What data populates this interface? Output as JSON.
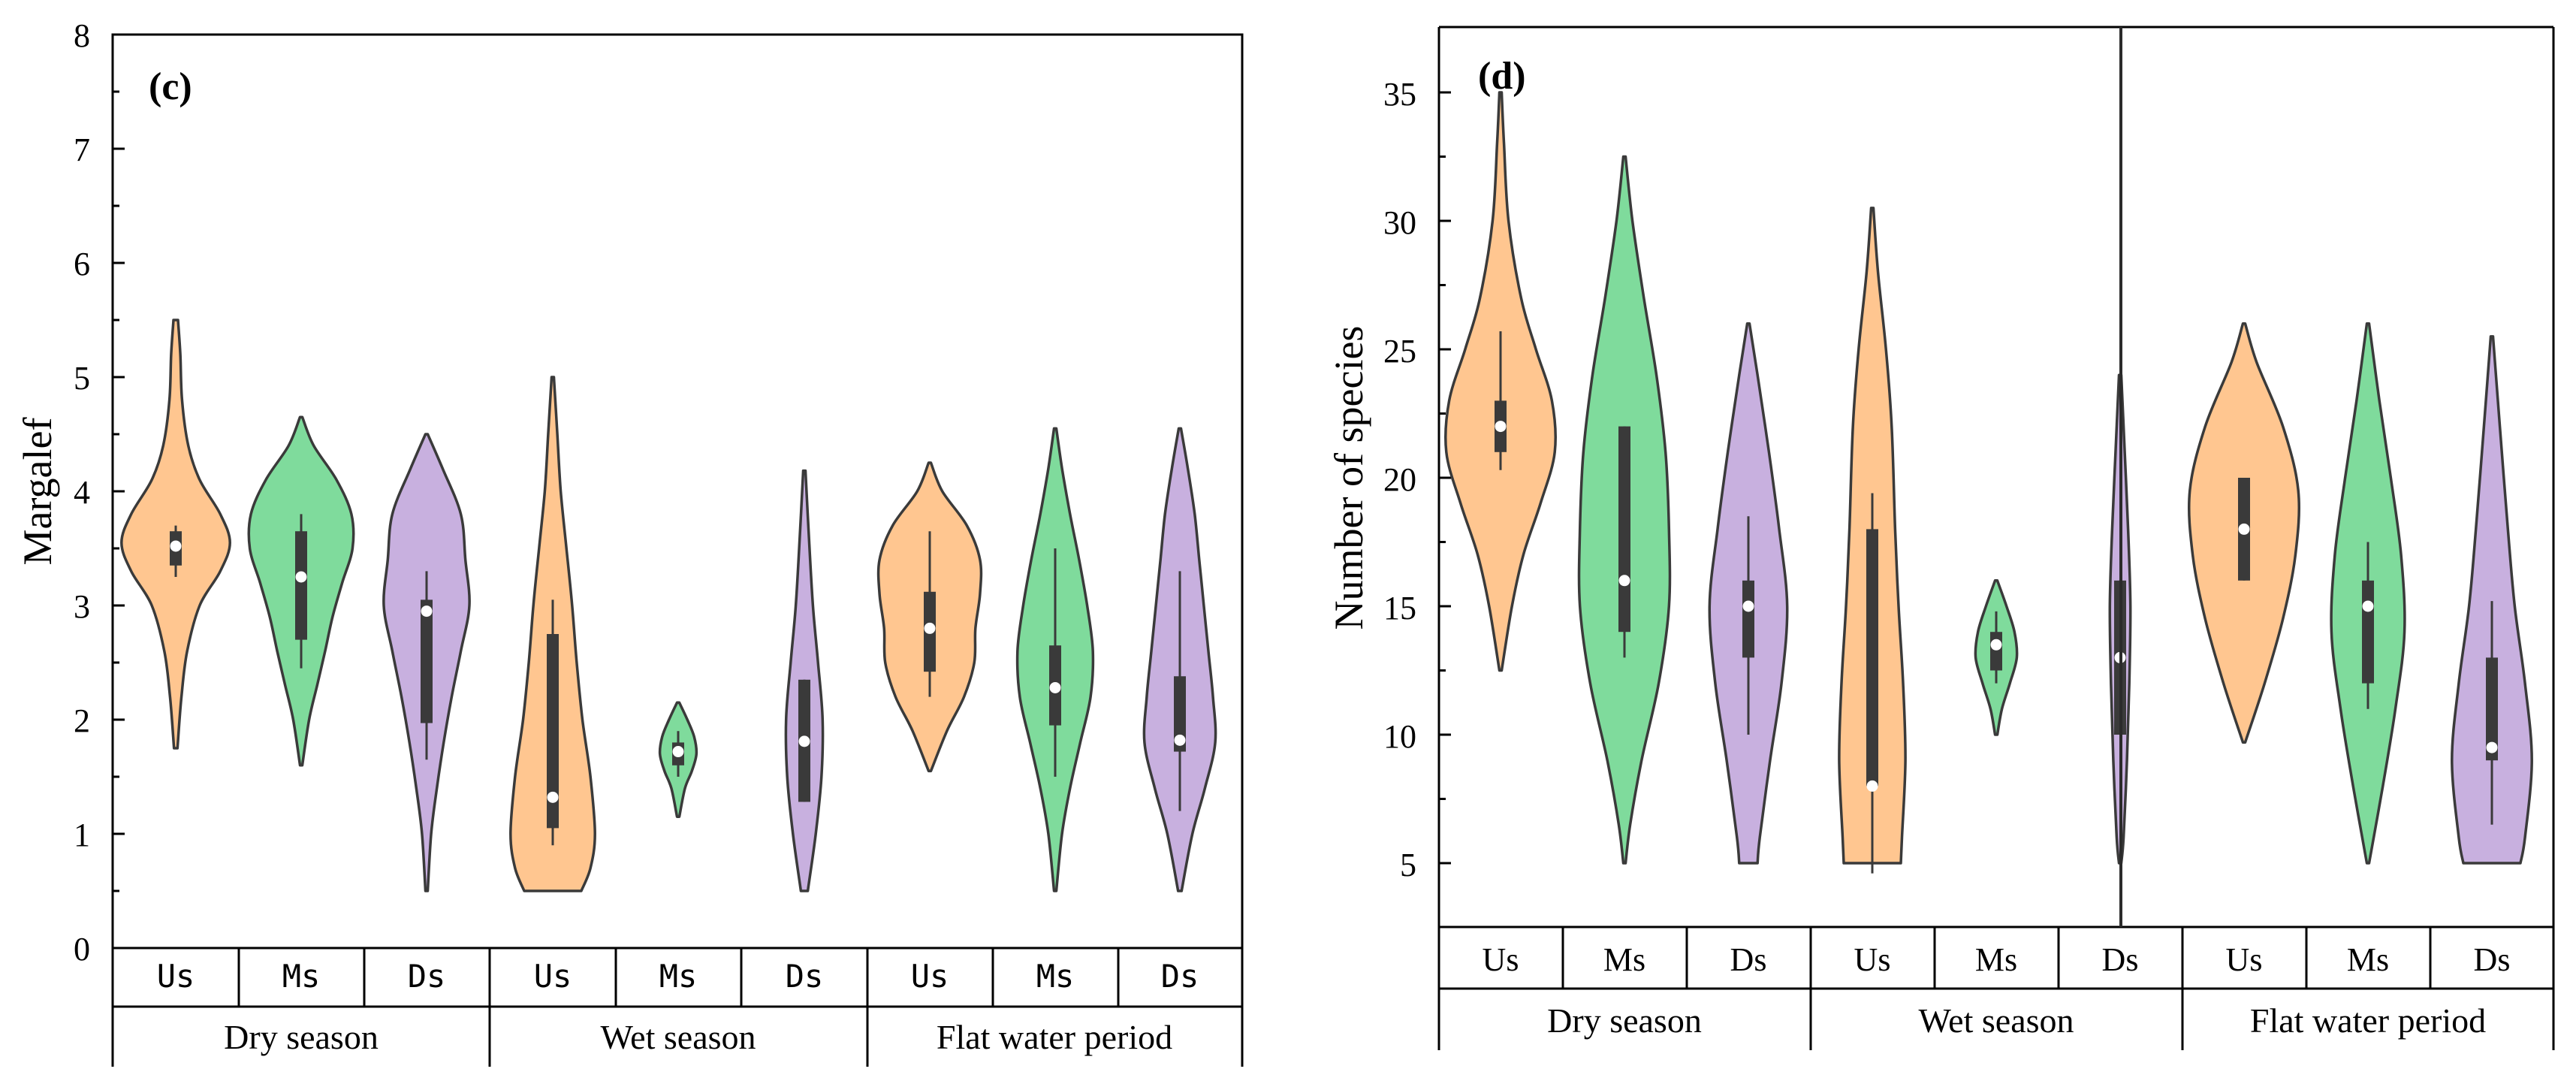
{
  "colors": {
    "Us": "#FFC690",
    "Ms": "#7FDB9C",
    "Ds": "#C8B0DF",
    "outline": "#3a3a3a",
    "box": "#3a3a3a",
    "median": "#ffffff"
  },
  "chart_data": [
    {
      "type": "violin",
      "panel_label": "(c)",
      "title": "",
      "ylabel": "Margalef",
      "xlabel": "",
      "ylim": [
        0,
        8
      ],
      "ytick_labels": [
        "0",
        "1",
        "2",
        "3",
        "4",
        "5",
        "6",
        "7",
        "8"
      ],
      "groups": [
        {
          "label": "Dry season",
          "categories": [
            "Us",
            "Ms",
            "Ds"
          ]
        },
        {
          "label": "Wet season",
          "categories": [
            "Us",
            "Ms",
            "Ds"
          ]
        },
        {
          "label": "Flat water period",
          "categories": [
            "Us",
            "Ms",
            "Ds"
          ]
        }
      ],
      "series": [
        {
          "group": "Dry season",
          "site": "Us",
          "min": 1.75,
          "max": 5.5,
          "q1": 3.35,
          "median": 3.52,
          "q3": 3.65,
          "wlo": 3.25,
          "whi": 3.7,
          "shape": [
            [
              5.5,
              0.04
            ],
            [
              5.2,
              0.08
            ],
            [
              4.8,
              0.11
            ],
            [
              4.4,
              0.22
            ],
            [
              4.1,
              0.42
            ],
            [
              3.8,
              0.78
            ],
            [
              3.55,
              0.95
            ],
            [
              3.3,
              0.78
            ],
            [
              3.0,
              0.42
            ],
            [
              2.6,
              0.2
            ],
            [
              2.2,
              0.1
            ],
            [
              1.75,
              0.03
            ]
          ]
        },
        {
          "group": "Dry season",
          "site": "Ms",
          "min": 1.6,
          "max": 4.65,
          "q1": 2.7,
          "median": 3.25,
          "q3": 3.65,
          "wlo": 2.45,
          "whi": 3.8,
          "shape": [
            [
              4.65,
              0.02
            ],
            [
              4.4,
              0.22
            ],
            [
              4.1,
              0.62
            ],
            [
              3.8,
              0.88
            ],
            [
              3.5,
              0.9
            ],
            [
              3.2,
              0.72
            ],
            [
              2.9,
              0.55
            ],
            [
              2.6,
              0.42
            ],
            [
              2.3,
              0.28
            ],
            [
              2.0,
              0.14
            ],
            [
              1.6,
              0.02
            ]
          ]
        },
        {
          "group": "Dry season",
          "site": "Ds",
          "min": 0.5,
          "max": 4.5,
          "q1": 1.97,
          "median": 2.95,
          "q3": 3.05,
          "wlo": 1.65,
          "whi": 3.3,
          "shape": [
            [
              4.5,
              0.02
            ],
            [
              4.2,
              0.28
            ],
            [
              3.8,
              0.6
            ],
            [
              3.4,
              0.68
            ],
            [
              3.0,
              0.75
            ],
            [
              2.6,
              0.6
            ],
            [
              2.2,
              0.44
            ],
            [
              1.8,
              0.3
            ],
            [
              1.4,
              0.18
            ],
            [
              1.0,
              0.08
            ],
            [
              0.5,
              0.02
            ]
          ]
        },
        {
          "group": "Wet season",
          "site": "Us",
          "min": 0.5,
          "max": 5.0,
          "q1": 1.05,
          "median": 1.32,
          "q3": 2.75,
          "wlo": 0.9,
          "whi": 3.05,
          "shape": [
            [
              5.0,
              0.02
            ],
            [
              4.5,
              0.08
            ],
            [
              4.0,
              0.14
            ],
            [
              3.5,
              0.24
            ],
            [
              3.0,
              0.34
            ],
            [
              2.5,
              0.42
            ],
            [
              2.0,
              0.52
            ],
            [
              1.5,
              0.66
            ],
            [
              1.0,
              0.74
            ],
            [
              0.7,
              0.66
            ],
            [
              0.5,
              0.5
            ]
          ]
        },
        {
          "group": "Wet season",
          "site": "Ms",
          "min": 1.15,
          "max": 2.15,
          "q1": 1.6,
          "median": 1.72,
          "q3": 1.8,
          "wlo": 1.5,
          "whi": 1.9,
          "shape": [
            [
              2.15,
              0.02
            ],
            [
              2.0,
              0.16
            ],
            [
              1.85,
              0.28
            ],
            [
              1.7,
              0.32
            ],
            [
              1.55,
              0.24
            ],
            [
              1.4,
              0.12
            ],
            [
              1.15,
              0.02
            ]
          ]
        },
        {
          "group": "Wet season",
          "site": "Ds",
          "min": 0.5,
          "max": 4.18,
          "q1": 1.28,
          "median": 1.81,
          "q3": 2.35,
          "wlo": 1.28,
          "whi": 2.35,
          "shape": [
            [
              4.18,
              0.02
            ],
            [
              3.6,
              0.08
            ],
            [
              3.0,
              0.15
            ],
            [
              2.5,
              0.24
            ],
            [
              2.0,
              0.32
            ],
            [
              1.5,
              0.3
            ],
            [
              1.0,
              0.2
            ],
            [
              0.5,
              0.06
            ]
          ]
        },
        {
          "group": "Flat water period",
          "site": "Us",
          "min": 1.55,
          "max": 4.25,
          "q1": 2.42,
          "median": 2.8,
          "q3": 3.12,
          "wlo": 2.2,
          "whi": 3.65,
          "shape": [
            [
              4.25,
              0.02
            ],
            [
              4.0,
              0.22
            ],
            [
              3.7,
              0.65
            ],
            [
              3.4,
              0.88
            ],
            [
              3.1,
              0.88
            ],
            [
              2.8,
              0.8
            ],
            [
              2.5,
              0.78
            ],
            [
              2.2,
              0.6
            ],
            [
              1.9,
              0.3
            ],
            [
              1.55,
              0.02
            ]
          ]
        },
        {
          "group": "Flat water period",
          "site": "Ms",
          "min": 0.5,
          "max": 4.55,
          "q1": 1.95,
          "median": 2.28,
          "q3": 2.65,
          "wlo": 1.5,
          "whi": 3.5,
          "shape": [
            [
              4.55,
              0.02
            ],
            [
              4.2,
              0.12
            ],
            [
              3.8,
              0.26
            ],
            [
              3.4,
              0.42
            ],
            [
              3.0,
              0.56
            ],
            [
              2.6,
              0.66
            ],
            [
              2.2,
              0.62
            ],
            [
              1.8,
              0.44
            ],
            [
              1.4,
              0.26
            ],
            [
              1.0,
              0.12
            ],
            [
              0.5,
              0.02
            ]
          ]
        },
        {
          "group": "Flat water period",
          "site": "Ds",
          "min": 0.5,
          "max": 4.55,
          "q1": 1.72,
          "median": 1.82,
          "q3": 2.38,
          "wlo": 1.2,
          "whi": 3.3,
          "shape": [
            [
              4.55,
              0.02
            ],
            [
              4.2,
              0.14
            ],
            [
              3.8,
              0.26
            ],
            [
              3.4,
              0.34
            ],
            [
              3.0,
              0.42
            ],
            [
              2.6,
              0.5
            ],
            [
              2.2,
              0.58
            ],
            [
              1.8,
              0.62
            ],
            [
              1.4,
              0.44
            ],
            [
              1.0,
              0.22
            ],
            [
              0.5,
              0.03
            ]
          ]
        }
      ]
    },
    {
      "type": "violin",
      "panel_label": "(d)",
      "title": "",
      "ylabel": "Number of  species",
      "xlabel": "",
      "ylim": [
        2.5,
        37.5
      ],
      "ytick_labels": [
        "5",
        "10",
        "15",
        "20",
        "25",
        "30",
        "35"
      ],
      "groups": [
        {
          "label": "Dry season",
          "categories": [
            "Us",
            "Ms",
            "Ds"
          ]
        },
        {
          "label": "Wet season",
          "categories": [
            "Us",
            "Ms",
            "Ds"
          ]
        },
        {
          "label": "Flat water period",
          "categories": [
            "Us",
            "Ms",
            "Ds"
          ]
        }
      ],
      "series": [
        {
          "group": "Dry season",
          "site": "Us",
          "min": 12.5,
          "max": 35,
          "q1": 21,
          "median": 22,
          "q3": 23,
          "wlo": 20.3,
          "whi": 25.7,
          "shape": [
            [
              35,
              0.02
            ],
            [
              33,
              0.06
            ],
            [
              30,
              0.14
            ],
            [
              27,
              0.36
            ],
            [
              25,
              0.62
            ],
            [
              23,
              0.9
            ],
            [
              21,
              0.95
            ],
            [
              19,
              0.7
            ],
            [
              17,
              0.4
            ],
            [
              15,
              0.2
            ],
            [
              12.5,
              0.02
            ]
          ]
        },
        {
          "group": "Dry season",
          "site": "Ms",
          "min": 5,
          "max": 32.5,
          "q1": 14,
          "median": 16,
          "q3": 22,
          "wlo": 13,
          "whi": 22,
          "shape": [
            [
              32.5,
              0.02
            ],
            [
              30,
              0.14
            ],
            [
              27,
              0.34
            ],
            [
              24,
              0.56
            ],
            [
              21,
              0.72
            ],
            [
              18,
              0.78
            ],
            [
              15,
              0.78
            ],
            [
              12,
              0.6
            ],
            [
              9,
              0.3
            ],
            [
              6.5,
              0.1
            ],
            [
              5,
              0.02
            ]
          ]
        },
        {
          "group": "Dry season",
          "site": "Ds",
          "min": 5,
          "max": 26,
          "q1": 13,
          "median": 15,
          "q3": 16,
          "wlo": 10,
          "whi": 18.5,
          "shape": [
            [
              26,
              0.02
            ],
            [
              24,
              0.16
            ],
            [
              21,
              0.36
            ],
            [
              18,
              0.54
            ],
            [
              15,
              0.68
            ],
            [
              12,
              0.58
            ],
            [
              9,
              0.38
            ],
            [
              6,
              0.2
            ],
            [
              5,
              0.16
            ]
          ]
        },
        {
          "group": "Wet season",
          "site": "Us",
          "min": 5,
          "max": 30.5,
          "q1": 8,
          "median": 8,
          "q3": 18,
          "wlo": 4.6,
          "whi": 19.4,
          "shape": [
            [
              30.5,
              0.02
            ],
            [
              28,
              0.1
            ],
            [
              25,
              0.24
            ],
            [
              22,
              0.34
            ],
            [
              18,
              0.4
            ],
            [
              15,
              0.46
            ],
            [
              12,
              0.54
            ],
            [
              9,
              0.58
            ],
            [
              6,
              0.52
            ],
            [
              5,
              0.5
            ]
          ]
        },
        {
          "group": "Wet season",
          "site": "Ms",
          "min": 10,
          "max": 16,
          "q1": 12.5,
          "median": 13.5,
          "q3": 14,
          "wlo": 12,
          "whi": 14.8,
          "shape": [
            [
              16,
              0.02
            ],
            [
              15,
              0.18
            ],
            [
              14,
              0.32
            ],
            [
              13,
              0.36
            ],
            [
              12,
              0.24
            ],
            [
              11,
              0.1
            ],
            [
              10,
              0.02
            ]
          ]
        },
        {
          "group": "Wet season",
          "site": "Ds",
          "min": 5,
          "max": 24,
          "q1": 10,
          "median": 13,
          "q3": 16,
          "wlo": 10,
          "whi": 16,
          "shape": [
            [
              24,
              0.02
            ],
            [
              21,
              0.08
            ],
            [
              18,
              0.14
            ],
            [
              15,
              0.18
            ],
            [
              12,
              0.16
            ],
            [
              9,
              0.12
            ],
            [
              6,
              0.06
            ],
            [
              5,
              0.02
            ]
          ]
        },
        {
          "group": "Flat water period",
          "site": "Us",
          "min": 9.7,
          "max": 26,
          "q1": 16,
          "median": 18,
          "q3": 20,
          "wlo": 16,
          "whi": 20,
          "shape": [
            [
              26,
              0.02
            ],
            [
              24.5,
              0.22
            ],
            [
              22,
              0.68
            ],
            [
              19.5,
              0.95
            ],
            [
              17,
              0.9
            ],
            [
              14.5,
              0.68
            ],
            [
              12,
              0.36
            ],
            [
              9.7,
              0.02
            ]
          ]
        },
        {
          "group": "Flat water period",
          "site": "Ms",
          "min": 5,
          "max": 26,
          "q1": 12,
          "median": 15,
          "q3": 16,
          "wlo": 11,
          "whi": 17.5,
          "shape": [
            [
              26,
              0.02
            ],
            [
              23,
              0.2
            ],
            [
              20,
              0.4
            ],
            [
              17,
              0.58
            ],
            [
              14,
              0.64
            ],
            [
              11,
              0.48
            ],
            [
              8,
              0.26
            ],
            [
              5,
              0.02
            ]
          ]
        },
        {
          "group": "Flat water period",
          "site": "Ds",
          "min": 5,
          "max": 25.5,
          "q1": 9,
          "median": 9.5,
          "q3": 13,
          "wlo": 6.5,
          "whi": 15.2,
          "shape": [
            [
              25.5,
              0.02
            ],
            [
              22,
              0.14
            ],
            [
              18,
              0.28
            ],
            [
              15,
              0.4
            ],
            [
              12,
              0.58
            ],
            [
              9,
              0.7
            ],
            [
              6,
              0.58
            ],
            [
              5,
              0.5
            ]
          ]
        }
      ]
    }
  ]
}
